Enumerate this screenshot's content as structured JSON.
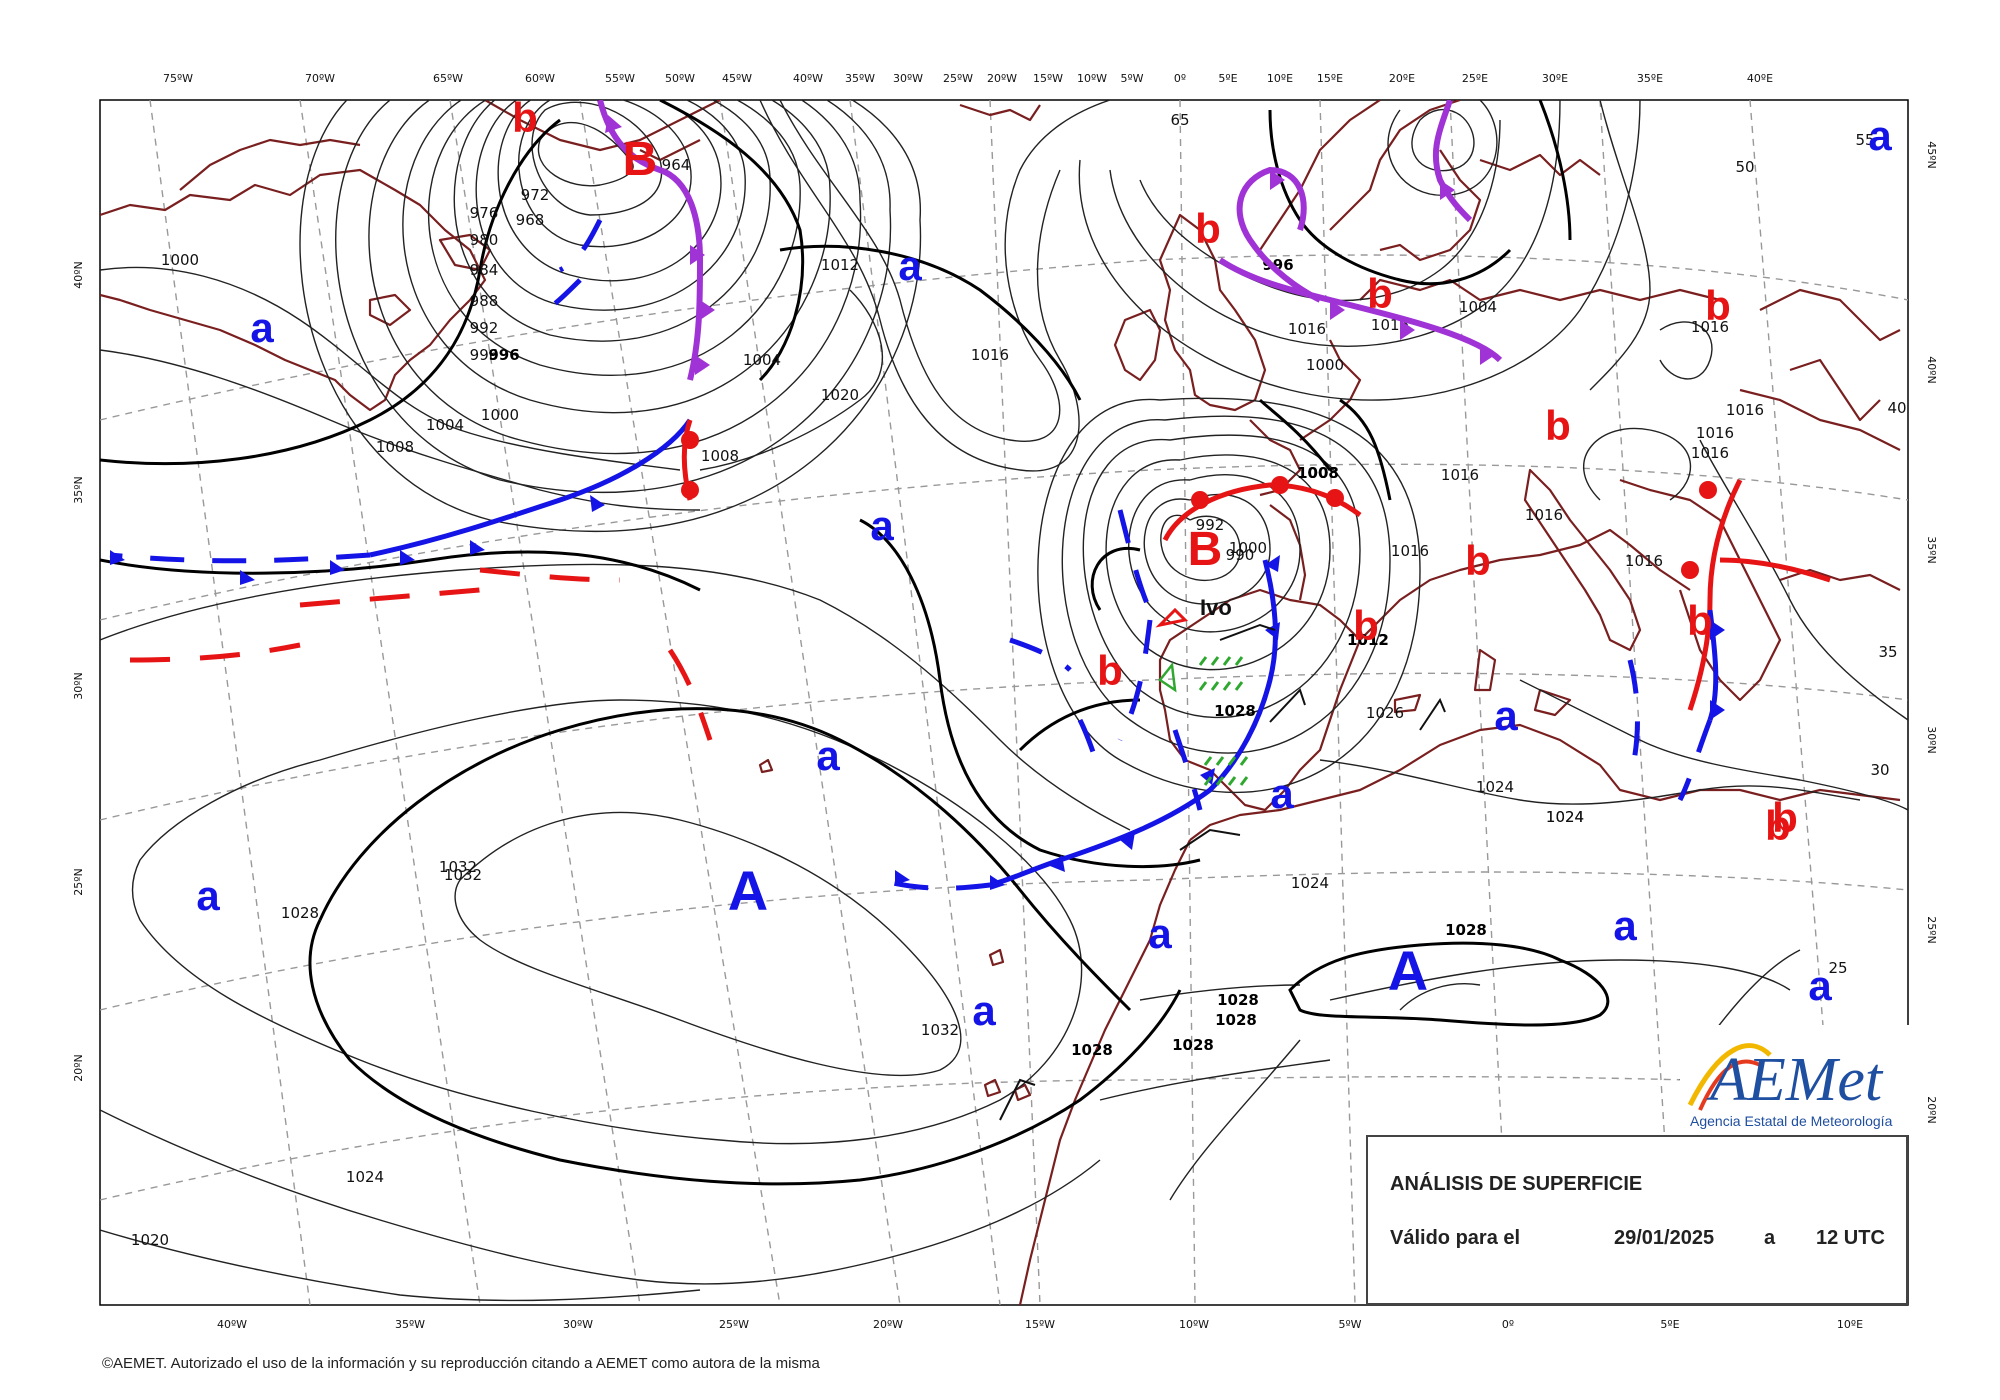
{
  "title": "ANÁLISIS DE SUPERFICIE",
  "valid_label": "Válido para el",
  "valid_date": "29/01/2025",
  "valid_a": "a",
  "valid_time": "12 UTC",
  "copyright": "©AEMET. Autorizado el uso de la información y su reproducción citando a AEMET como autora de la misma",
  "logo": {
    "name": "AEMet",
    "subtitle": "Agencia Estatal de Meteorología"
  },
  "storm_name": "Ivo",
  "colors": {
    "high": "#1414e6",
    "low": "#e61414",
    "occluded": "#a033d6",
    "coast": "#7a1f1f"
  },
  "top_ticks": [
    "75ºW",
    "70ºW",
    "65ºW",
    "60ºW",
    "55ºW",
    "50ºW",
    "45ºW",
    "40ºW",
    "35ºW",
    "30ºW",
    "25ºW",
    "20ºW",
    "15ºW",
    "10ºW",
    "5ºW",
    "0º",
    "5ºE",
    "10ºE",
    "15ºE",
    "20ºE",
    "25ºE",
    "30ºE",
    "35ºE",
    "40ºE"
  ],
  "bottom_ticks": [
    "40ºW",
    "35ºW",
    "30ºW",
    "25ºW",
    "20ºW",
    "15ºW",
    "10ºW",
    "5ºW",
    "0º",
    "5ºE",
    "10ºE"
  ],
  "left_ticks": [
    "40ºN",
    "35ºN",
    "30ºN",
    "25ºN",
    "20ºN"
  ],
  "right_ticks": [
    "45ºN",
    "40ºN",
    "35ºN",
    "30ºN",
    "25ºN",
    "20ºN"
  ],
  "pressure_centers": {
    "high_big": [
      "A",
      "A"
    ],
    "high_small": [
      "a",
      "a",
      "a",
      "a",
      "a",
      "a",
      "a",
      "a",
      "a",
      "a",
      "a",
      "a"
    ],
    "low_big": [
      "B",
      "B"
    ],
    "low_small": [
      "b",
      "b",
      "b",
      "b",
      "b",
      "b",
      "b",
      "b",
      "b",
      "b",
      "b",
      "b"
    ]
  },
  "isobar_labels": [
    "1000",
    "1004",
    "1008",
    "1012",
    "1016",
    "1020",
    "1024",
    "1028",
    "1032",
    "996",
    "992",
    "988",
    "984",
    "980",
    "976",
    "972",
    "968",
    "964",
    "1000",
    "1004",
    "1008",
    "1016",
    "1016",
    "1016",
    "1016",
    "1016",
    "1016",
    "1016",
    "1016",
    "1024",
    "1024",
    "1026",
    "1028",
    "1028",
    "1028",
    "1028",
    "1032",
    "1032",
    "1024",
    "1020",
    "1028",
    "996",
    "996",
    "1000",
    "1004",
    "1008",
    "1012",
    "1016",
    "1016",
    "1028",
    "992",
    "990",
    "1000",
    "1012",
    "1024",
    "55",
    "50",
    "40",
    "35",
    "30",
    "25",
    "65",
    "1008"
  ]
}
